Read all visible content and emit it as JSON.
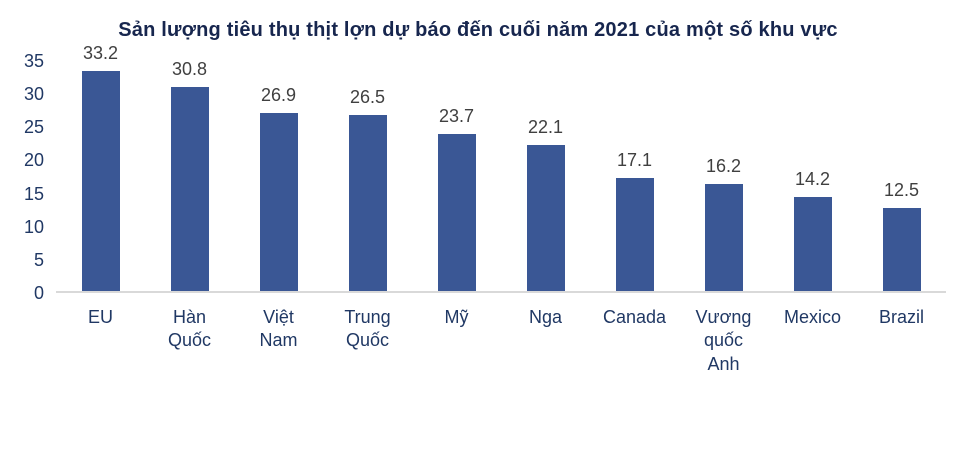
{
  "colors": {
    "bar": "#3a5795",
    "title": "#17264e",
    "axis_label": "#203864",
    "value_label": "#404040",
    "baseline": "#d9d9d9"
  },
  "chart_data": {
    "type": "bar",
    "title": "Sản lượng tiêu thụ thịt lợn dự báo đến cuối năm 2021 của một số khu vực",
    "categories": [
      "EU",
      "Hàn\nQuốc",
      "Việt\nNam",
      "Trung\nQuốc",
      "Mỹ",
      "Nga",
      "Canada",
      "Vương\nquốc\nAnh",
      "Mexico",
      "Brazil"
    ],
    "values": [
      33.2,
      30.8,
      26.9,
      26.5,
      23.7,
      22.1,
      17.1,
      16.2,
      14.2,
      12.5
    ],
    "xlabel": "",
    "ylabel": "",
    "ylim": [
      0,
      35
    ],
    "ytick_step": 5,
    "yticks": [
      35,
      30,
      25,
      20,
      15,
      10,
      5,
      0
    ],
    "grid": false,
    "legend": false,
    "value_labels": true
  }
}
